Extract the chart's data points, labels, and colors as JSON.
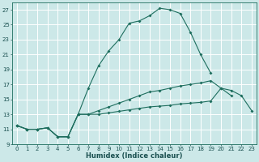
{
  "xlabel": "Humidex (Indice chaleur)",
  "background_color": "#cce8e8",
  "grid_color": "#ffffff",
  "line_color": "#1e6e5e",
  "xlim": [
    -0.5,
    23.5
  ],
  "ylim": [
    9,
    28
  ],
  "xticks": [
    0,
    1,
    2,
    3,
    4,
    5,
    6,
    7,
    8,
    9,
    10,
    11,
    12,
    13,
    14,
    15,
    16,
    17,
    18,
    19,
    20,
    21,
    22,
    23
  ],
  "yticks": [
    9,
    11,
    13,
    15,
    17,
    19,
    21,
    23,
    25,
    27
  ],
  "curve1_x": [
    0,
    1,
    2,
    3,
    4,
    5,
    6,
    7,
    8,
    9,
    10,
    11,
    12,
    13,
    14,
    15,
    16,
    17,
    18,
    19
  ],
  "curve1_y": [
    11.5,
    11,
    11,
    11.2,
    10,
    10,
    13,
    16.5,
    19.5,
    21.5,
    23,
    25.2,
    25.5,
    26.2,
    27.2,
    27,
    26.5,
    24,
    21,
    18.5
  ],
  "curve2_x": [
    0,
    1,
    2,
    3,
    4,
    5,
    6,
    7,
    8,
    9,
    10,
    11,
    12,
    13,
    14,
    15,
    16,
    17,
    18,
    19,
    20,
    21
  ],
  "curve2_y": [
    11.5,
    11,
    11,
    11.2,
    10,
    10,
    13,
    13,
    13.5,
    14,
    14.5,
    15,
    15.5,
    16,
    16.2,
    16.5,
    16.8,
    17,
    17.2,
    17.5,
    16.5,
    15.5
  ],
  "curve3_x": [
    0,
    1,
    2,
    3,
    4,
    5,
    6,
    7,
    8,
    9,
    10,
    11,
    12,
    13,
    14,
    15,
    16,
    17,
    18,
    19,
    20,
    21,
    22,
    23
  ],
  "curve3_y": [
    11.5,
    11,
    11,
    11.2,
    10,
    10,
    13,
    13,
    13,
    13.2,
    13.4,
    13.6,
    13.8,
    14,
    14.1,
    14.2,
    14.4,
    14.5,
    14.6,
    14.8,
    16.5,
    16.2,
    15.5,
    13.5
  ]
}
